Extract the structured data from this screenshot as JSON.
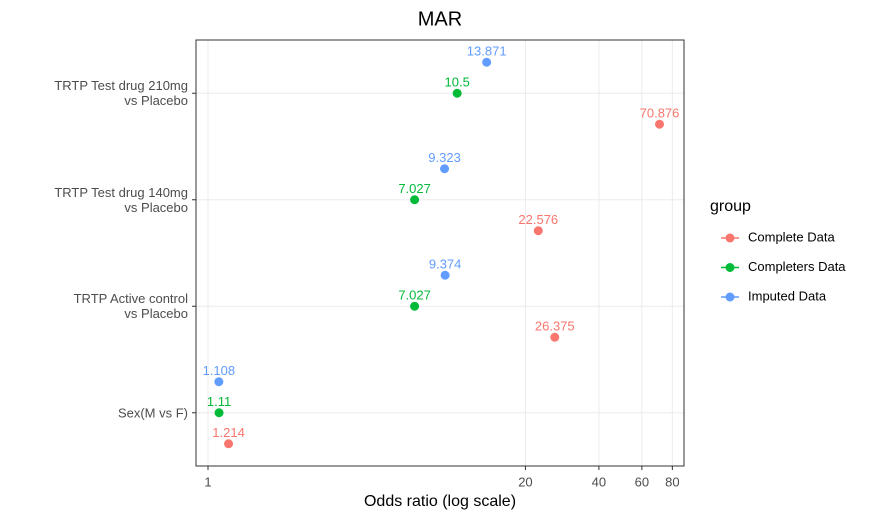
{
  "chart_data": {
    "type": "dot",
    "title": "MAR",
    "x_label": "Odds ratio (log scale)",
    "log_x": true,
    "grid": true,
    "categories": [
      "TRTP Test drug 210mg\nvs Placebo",
      "TRTP Test drug 140mg\nvs Placebo",
      "TRTP Active control\nvs Placebo",
      "Sex(M vs F)"
    ],
    "series": [
      {
        "name": "Complete Data",
        "color": "#F8766D",
        "values": [
          70.876,
          22.576,
          26.375,
          1.214
        ]
      },
      {
        "name": "Completers Data",
        "color": "#00BA38",
        "values": [
          10.5,
          7.027,
          7.027,
          1.11
        ]
      },
      {
        "name": "Imputed Data",
        "color": "#619CFF",
        "values": [
          13.871,
          9.323,
          9.374,
          1.108
        ]
      }
    ],
    "xlim": [
      0.893,
      89.3
    ],
    "xticks": [
      1,
      20,
      40,
      60,
      80
    ],
    "legend_title": "group",
    "legend_position": "right"
  }
}
